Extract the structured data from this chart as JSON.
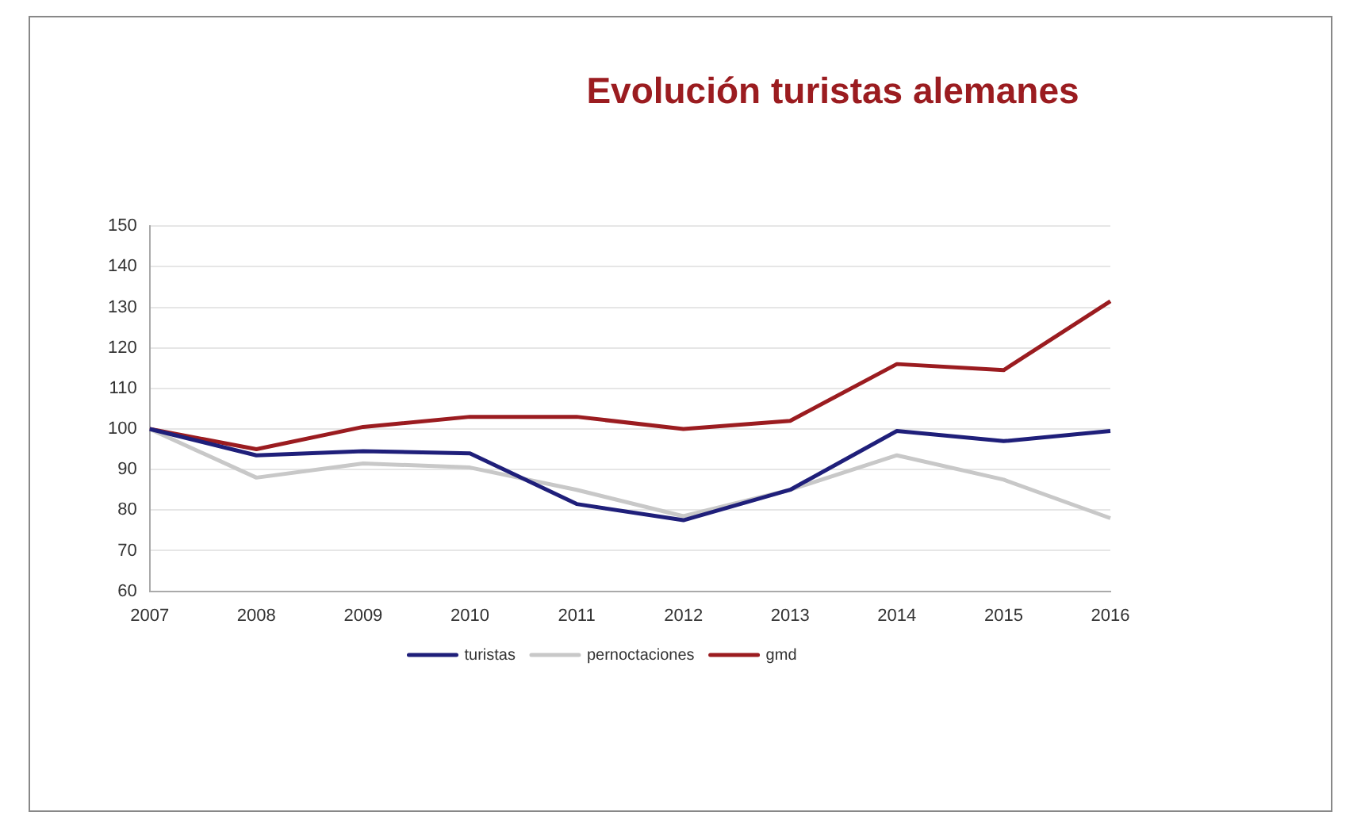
{
  "chart_data": {
    "type": "line",
    "title": "Evolución turistas alemanes",
    "categories": [
      "2007",
      "2008",
      "2009",
      "2010",
      "2011",
      "2012",
      "2013",
      "2014",
      "2015",
      "2016"
    ],
    "series": [
      {
        "name": "turistas",
        "color": "#1f1f7a",
        "values": [
          100,
          93.5,
          94.5,
          94,
          81.5,
          77.5,
          85,
          99.5,
          97,
          99.5
        ]
      },
      {
        "name": "pernoctaciones",
        "color": "#c8c8c8",
        "values": [
          100,
          88,
          91.5,
          90.5,
          85,
          78.5,
          85,
          93.5,
          87.5,
          78
        ]
      },
      {
        "name": "gmd",
        "color": "#9b1c20",
        "values": [
          100,
          95,
          100.5,
          103,
          103,
          100,
          102,
          116,
          114.5,
          131.5
        ]
      }
    ],
    "ylim": [
      60,
      150
    ],
    "yticks": [
      60,
      70,
      80,
      90,
      100,
      110,
      120,
      130,
      140,
      150
    ],
    "grid": "y",
    "legend": "bottom",
    "marker": "none",
    "line_style": "solid"
  }
}
